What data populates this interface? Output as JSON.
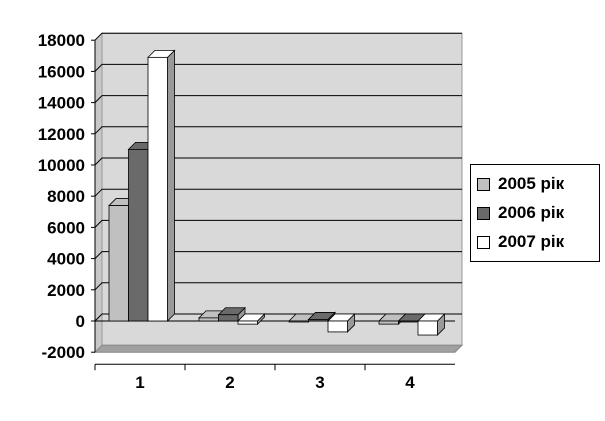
{
  "chart_data": {
    "type": "bar",
    "style": "3d-clustered-column",
    "categories": [
      "1",
      "2",
      "3",
      "4"
    ],
    "series": [
      {
        "name": "2005 рік",
        "color": "#c0c0c0",
        "values": [
          7400,
          200,
          -50,
          -200
        ]
      },
      {
        "name": "2006 рік",
        "color": "#6a6a6a",
        "values": [
          11000,
          400,
          100,
          -50
        ]
      },
      {
        "name": "2007 рік",
        "color": "#ffffff",
        "values": [
          16900,
          -200,
          -700,
          -900
        ]
      }
    ],
    "ylim": [
      -2000,
      18000
    ],
    "yticks": [
      -2000,
      0,
      2000,
      4000,
      6000,
      8000,
      10000,
      12000,
      14000,
      16000,
      18000
    ],
    "grid": true,
    "legend": "right",
    "wall_color": "#d9d9d9"
  }
}
